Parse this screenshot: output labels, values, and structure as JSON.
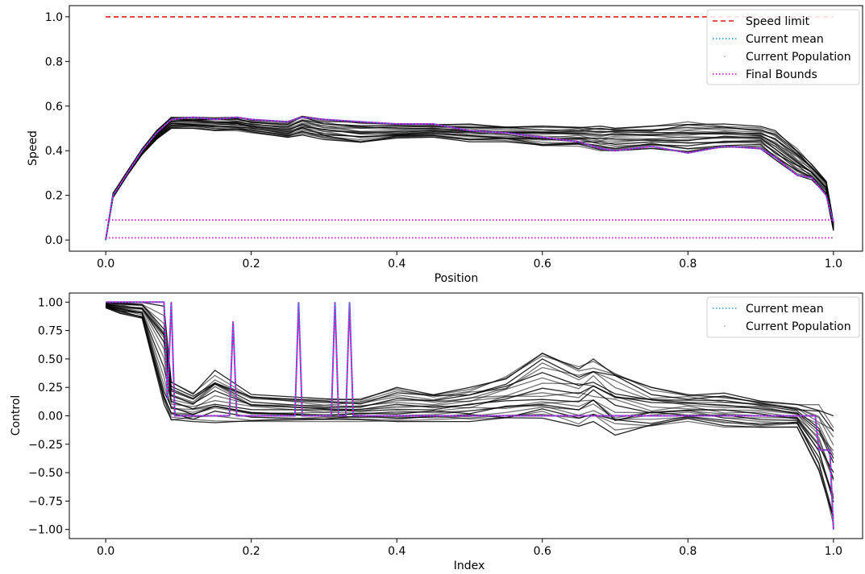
{
  "chart_data": [
    {
      "type": "line",
      "xlabel": "Position",
      "ylabel": "Speed",
      "xlim": [
        -0.05,
        1.04
      ],
      "ylim": [
        -0.05,
        1.05
      ],
      "xticks": [
        "0.0",
        "0.2",
        "0.4",
        "0.6",
        "0.8",
        "1.0"
      ],
      "yticks": [
        "0.0",
        "0.2",
        "0.4",
        "0.6",
        "0.8",
        "1.0"
      ],
      "legend_position": "top-right",
      "legend": [
        "Speed limit",
        "Current mean",
        "Current Population",
        "Final Bounds"
      ],
      "colors": {
        "speed_limit": "#e41a1c",
        "mean": "#1f9ae0",
        "population": "#000000",
        "bounds": "#c000c0"
      },
      "series": [
        {
          "name": "Speed limit",
          "style": "dashed",
          "x": [
            0.0,
            1.0
          ],
          "y": [
            1.0,
            1.0
          ]
        },
        {
          "name": "Current mean",
          "style": "dotted",
          "x": [
            0.0,
            0.01,
            0.03,
            0.05,
            0.07,
            0.09,
            0.12,
            0.15,
            0.18,
            0.2,
            0.25,
            0.27,
            0.3,
            0.35,
            0.4,
            0.45,
            0.5,
            0.55,
            0.6,
            0.65,
            0.68,
            0.7,
            0.75,
            0.8,
            0.85,
            0.9,
            0.92,
            0.95,
            0.97,
            0.99,
            1.0
          ],
          "y": [
            0.0,
            0.2,
            0.3,
            0.4,
            0.48,
            0.54,
            0.55,
            0.54,
            0.55,
            0.54,
            0.53,
            0.55,
            0.54,
            0.53,
            0.52,
            0.52,
            0.49,
            0.48,
            0.46,
            0.44,
            0.41,
            0.4,
            0.42,
            0.39,
            0.42,
            0.41,
            0.37,
            0.29,
            0.28,
            0.2,
            0.08
          ]
        },
        {
          "name": "Current Population",
          "style": "band",
          "x": [
            0.0,
            0.01,
            0.03,
            0.05,
            0.07,
            0.09,
            0.12,
            0.15,
            0.18,
            0.2,
            0.25,
            0.27,
            0.3,
            0.35,
            0.4,
            0.45,
            0.5,
            0.55,
            0.6,
            0.65,
            0.68,
            0.7,
            0.75,
            0.8,
            0.85,
            0.9,
            0.92,
            0.95,
            0.97,
            0.99,
            1.0
          ],
          "y_low": [
            0.0,
            0.19,
            0.29,
            0.38,
            0.45,
            0.5,
            0.5,
            0.49,
            0.49,
            0.48,
            0.46,
            0.47,
            0.45,
            0.43,
            0.45,
            0.46,
            0.44,
            0.44,
            0.42,
            0.42,
            0.4,
            0.4,
            0.41,
            0.39,
            0.41,
            0.4,
            0.36,
            0.29,
            0.27,
            0.2,
            0.04
          ],
          "y_high": [
            0.0,
            0.21,
            0.31,
            0.41,
            0.49,
            0.55,
            0.55,
            0.55,
            0.55,
            0.54,
            0.53,
            0.56,
            0.54,
            0.53,
            0.52,
            0.52,
            0.52,
            0.51,
            0.51,
            0.51,
            0.51,
            0.51,
            0.51,
            0.53,
            0.52,
            0.52,
            0.49,
            0.41,
            0.34,
            0.27,
            0.08
          ]
        },
        {
          "name": "Final Bounds",
          "style": "dotted",
          "x": [
            0.0,
            1.0
          ],
          "y": [
            0.09,
            0.09
          ]
        },
        {
          "name": "Final Bounds",
          "style": "dotted",
          "x": [
            0.0,
            1.0
          ],
          "y": [
            0.01,
            0.01
          ]
        }
      ]
    },
    {
      "type": "line",
      "xlabel": "Index",
      "ylabel": "Control",
      "xlim": [
        -0.05,
        1.04
      ],
      "ylim": [
        -1.08,
        1.08
      ],
      "xticks": [
        "0.0",
        "0.2",
        "0.4",
        "0.6",
        "0.8",
        "1.0"
      ],
      "yticks": [
        "1.00",
        "0.75",
        "0.50",
        "0.25",
        "0.00",
        "−0.25",
        "−0.50",
        "−0.75",
        "−1.00"
      ],
      "legend_position": "top-right",
      "legend": [
        "Current mean",
        "Current Population"
      ],
      "colors": {
        "mean": "#1f9ae0",
        "population": "#000000",
        "bounds": "#c000c0"
      },
      "series": [
        {
          "name": "Current mean",
          "style": "dotted",
          "x": [
            0.0,
            0.08,
            0.085,
            0.09,
            0.095,
            0.17,
            0.175,
            0.18,
            0.26,
            0.265,
            0.27,
            0.31,
            0.315,
            0.32,
            0.33,
            0.335,
            0.34,
            0.35,
            0.5,
            0.7,
            0.9,
            0.975,
            0.98,
            0.995,
            1.0
          ],
          "y": [
            1.0,
            1.0,
            0.15,
            1.0,
            0.0,
            0.0,
            0.83,
            0.0,
            0.0,
            1.0,
            0.0,
            0.0,
            1.0,
            0.0,
            0.0,
            1.0,
            0.0,
            0.0,
            0.0,
            0.0,
            0.0,
            0.0,
            -0.3,
            -0.3,
            -1.0
          ]
        },
        {
          "name": "Current Population",
          "style": "band",
          "x": [
            0.0,
            0.02,
            0.05,
            0.08,
            0.09,
            0.12,
            0.15,
            0.2,
            0.3,
            0.35,
            0.4,
            0.45,
            0.5,
            0.55,
            0.6,
            0.65,
            0.67,
            0.7,
            0.75,
            0.8,
            0.85,
            0.9,
            0.95,
            0.98,
            1.0
          ],
          "y_low": [
            0.95,
            0.9,
            0.85,
            0.0,
            -0.05,
            -0.05,
            -0.06,
            -0.05,
            -0.05,
            -0.05,
            -0.05,
            -0.05,
            -0.05,
            -0.05,
            -0.08,
            -0.1,
            -0.05,
            -0.17,
            -0.1,
            -0.05,
            -0.1,
            -0.1,
            -0.1,
            -0.5,
            -1.0
          ],
          "y_high": [
            1.0,
            1.0,
            1.0,
            1.0,
            0.3,
            0.2,
            0.4,
            0.2,
            0.15,
            0.15,
            0.25,
            0.2,
            0.25,
            0.35,
            0.55,
            0.45,
            0.5,
            0.4,
            0.25,
            0.2,
            0.2,
            0.15,
            0.1,
            0.1,
            0.0
          ]
        }
      ]
    }
  ]
}
